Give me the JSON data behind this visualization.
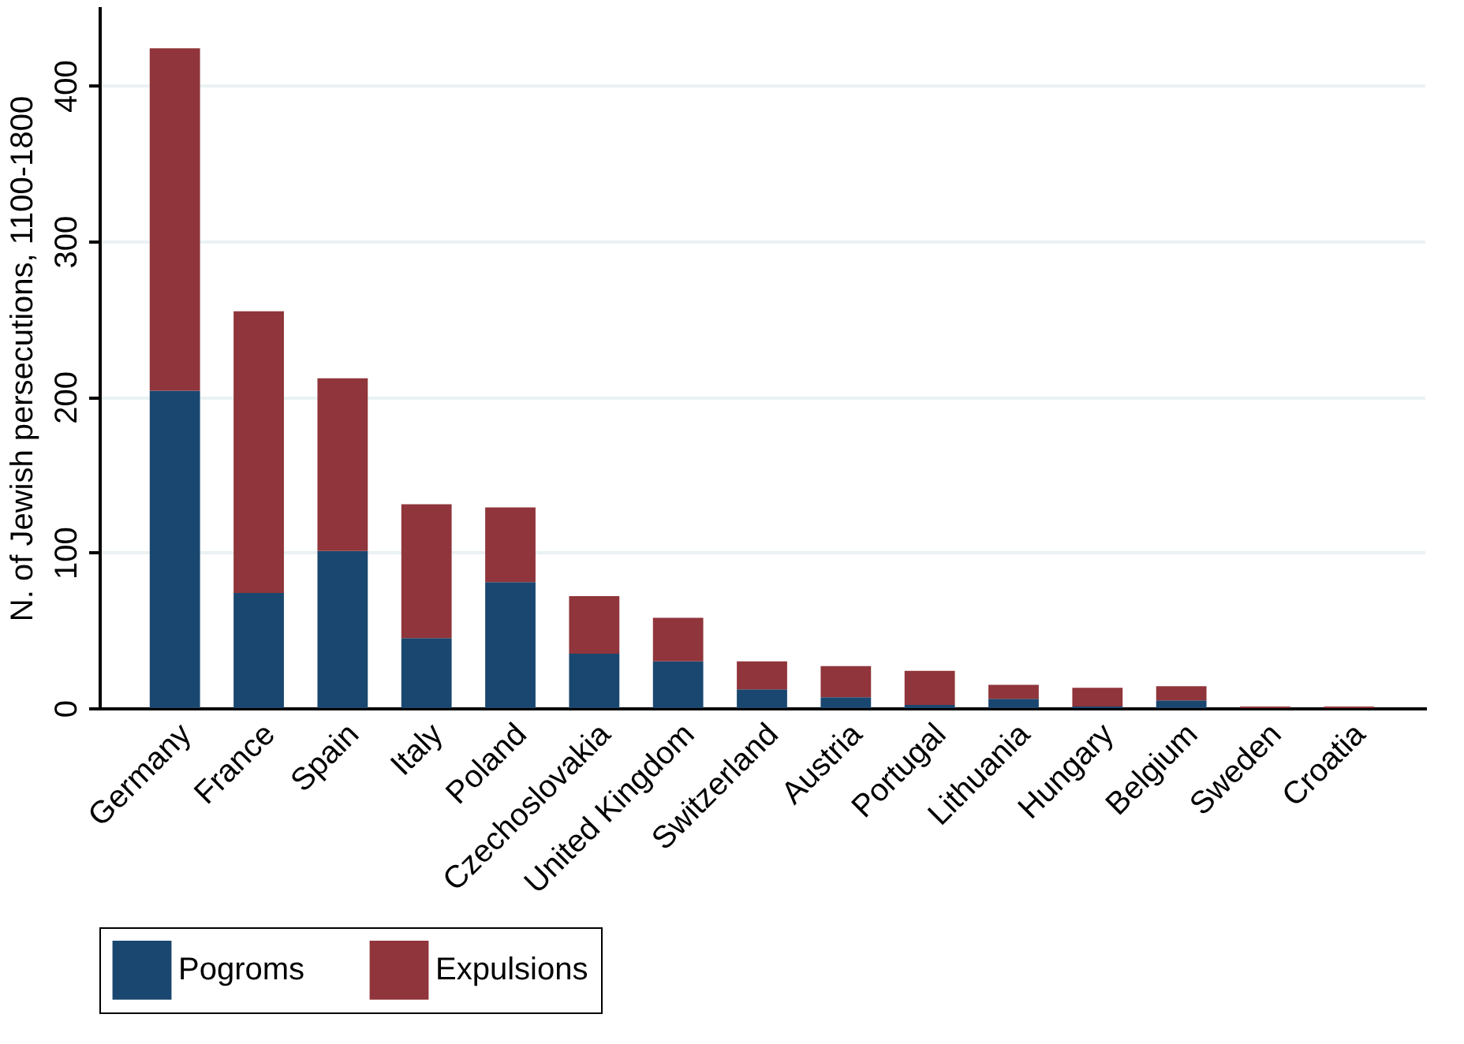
{
  "chart_data": {
    "type": "bar",
    "stacked": true,
    "ylabel": "N. of Jewish persecutions, 1100-1800",
    "categories": [
      "Germany",
      "France",
      "Spain",
      "Italy",
      "Poland",
      "Czechoslovakia",
      "United Kingdom",
      "Switzerland",
      "Austria",
      "Portugal",
      "Lithuania",
      "Hungary",
      "Belgium",
      "Sweden",
      "Croatia"
    ],
    "series": [
      {
        "name": "Pogroms",
        "color": "#1a476f",
        "values": [
          204,
          74,
          101,
          45,
          81,
          35,
          30,
          12,
          7,
          2,
          6,
          1,
          5,
          0,
          0
        ]
      },
      {
        "name": "Expulsions",
        "color": "#90353b",
        "values": [
          220,
          181,
          111,
          86,
          48,
          37,
          28,
          18,
          20,
          22,
          9,
          12,
          9,
          1,
          1
        ]
      }
    ],
    "ylim": [
      0,
      450
    ],
    "yticks": [
      0,
      100,
      200,
      300,
      400
    ],
    "grid": "y",
    "legend": "bottom"
  }
}
